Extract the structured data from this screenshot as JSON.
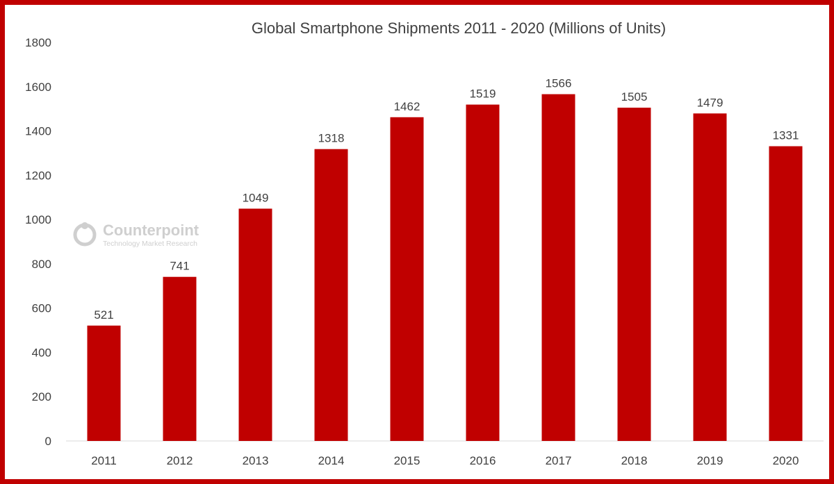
{
  "watermark": {
    "name": "Counterpoint",
    "subtitle": "Technology Market Research"
  },
  "colors": {
    "bar": "#c00000",
    "frame": "#c00000",
    "text": "#404040",
    "axis": "#d9d9d9",
    "watermark": "#cfcfcf"
  },
  "chart_data": {
    "type": "bar",
    "title": "Global Smartphone Shipments 2011 - 2020 (Millions of Units)",
    "xlabel": "",
    "ylabel": "",
    "categories": [
      "2011",
      "2012",
      "2013",
      "2014",
      "2015",
      "2016",
      "2017",
      "2018",
      "2019",
      "2020"
    ],
    "values": [
      521,
      741,
      1049,
      1318,
      1462,
      1519,
      1566,
      1505,
      1479,
      1331
    ],
    "ylim": [
      0,
      1800
    ],
    "yticks": [
      0,
      200,
      400,
      600,
      800,
      1000,
      1200,
      1400,
      1600,
      1800
    ],
    "grid": false,
    "legend": "none",
    "data_labels": true
  }
}
